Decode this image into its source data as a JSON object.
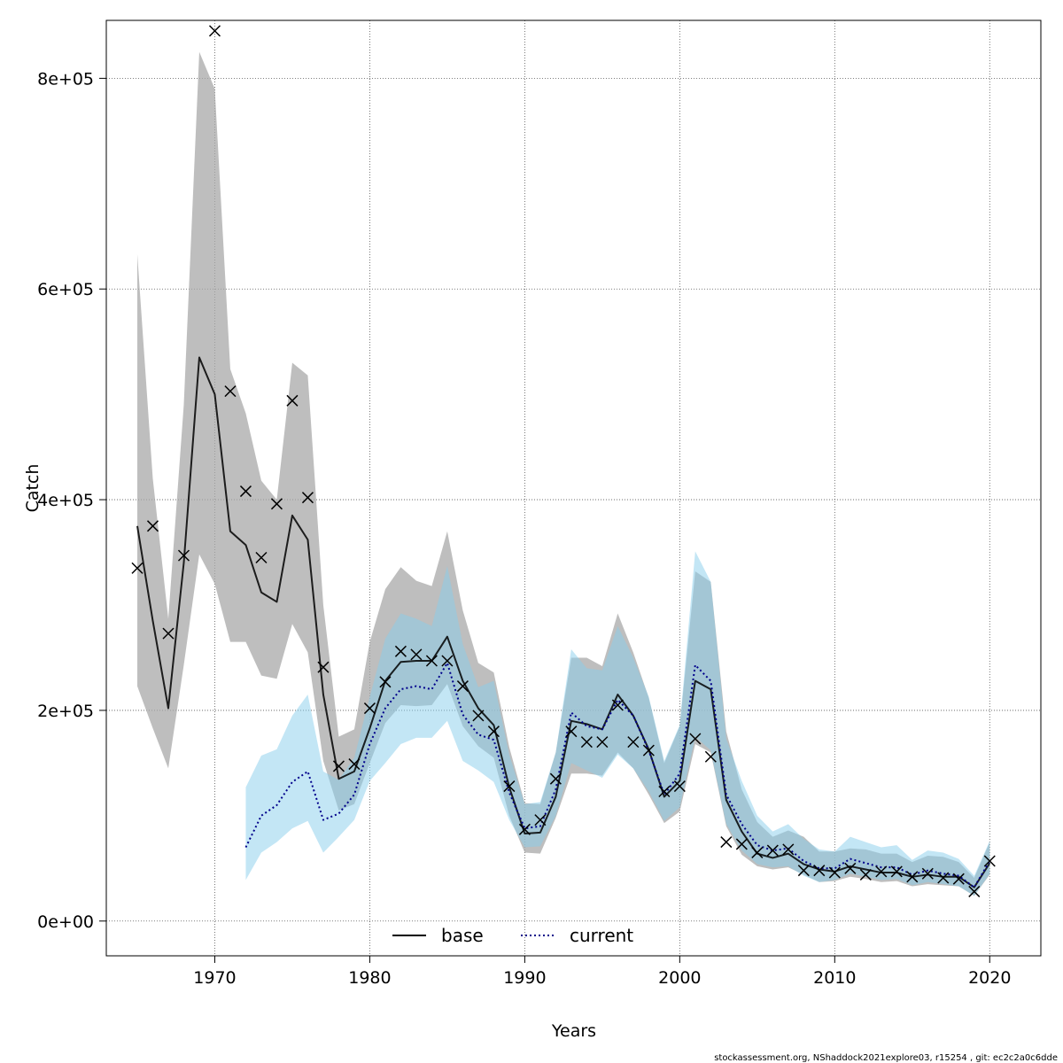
{
  "chart_data": {
    "type": "line",
    "xlabel": "Years",
    "ylabel": "Catch",
    "xlim": [
      1963,
      2023.3
    ],
    "ylim": [
      -33000,
      855000
    ],
    "x_ticks": [
      1970,
      1980,
      1990,
      2000,
      2010,
      2020
    ],
    "y_ticks": [
      0,
      200000,
      400000,
      600000,
      800000
    ],
    "y_tick_labels": [
      "0e+00",
      "2e+05",
      "4e+05",
      "6e+05",
      "8e+05"
    ],
    "grid": true,
    "legend_position": "bottom-center",
    "colors": {
      "base_band": "#a8a8a8",
      "current_band": "#87ceeb",
      "base_line": "#000000",
      "current_line": "#00008b"
    },
    "series": [
      {
        "name": "base",
        "style": "solid",
        "x": [
          1965,
          1966,
          1967,
          1968,
          1969,
          1970,
          1971,
          1972,
          1973,
          1974,
          1975,
          1976,
          1977,
          1978,
          1979,
          1980,
          1981,
          1982,
          1983,
          1984,
          1985,
          1986,
          1987,
          1988,
          1989,
          1990,
          1991,
          1992,
          1993,
          1994,
          1995,
          1996,
          1997,
          1998,
          1999,
          2000,
          2001,
          2002,
          2003,
          2004,
          2005,
          2006,
          2007,
          2008,
          2009,
          2010,
          2011,
          2012,
          2013,
          2014,
          2015,
          2016,
          2017,
          2018,
          2019,
          2020
        ],
        "estimate": [
          375000,
          285000,
          202000,
          340000,
          535000,
          500000,
          370000,
          357000,
          312000,
          303000,
          385000,
          362000,
          215000,
          135000,
          142000,
          183000,
          228000,
          246000,
          247000,
          247000,
          270000,
          228000,
          202000,
          186000,
          127000,
          83000,
          84000,
          118000,
          190000,
          187000,
          182000,
          215000,
          195000,
          163000,
          118000,
          133000,
          228000,
          220000,
          115000,
          85000,
          64000,
          60000,
          64000,
          54000,
          49000,
          47000,
          52000,
          49000,
          46000,
          46000,
          42000,
          44000,
          42000,
          42000,
          32000,
          55000
        ],
        "lower": [
          223000,
          183000,
          145000,
          243000,
          348000,
          320000,
          265000,
          265000,
          233000,
          230000,
          282000,
          255000,
          152000,
          105000,
          111000,
          150000,
          188000,
          205000,
          204000,
          205000,
          225000,
          185000,
          166000,
          155000,
          100000,
          65000,
          64000,
          98000,
          140000,
          140000,
          138000,
          160000,
          145000,
          120000,
          93000,
          104000,
          168000,
          160000,
          90000,
          63000,
          52000,
          49000,
          51000,
          44000,
          37000,
          38000,
          42000,
          40000,
          37000,
          38000,
          33000,
          35000,
          34000,
          33000,
          24000,
          44000
        ],
        "upper": [
          633000,
          420000,
          287000,
          490000,
          825000,
          790000,
          524000,
          482000,
          418000,
          400000,
          530000,
          518000,
          300000,
          175000,
          182000,
          265000,
          315000,
          336000,
          323000,
          318000,
          370000,
          295000,
          245000,
          236000,
          165000,
          112000,
          111000,
          160000,
          250000,
          250000,
          242000,
          292000,
          255000,
          212000,
          150000,
          185000,
          332000,
          322000,
          180000,
          125000,
          94000,
          80000,
          86000,
          80000,
          66000,
          66000,
          69000,
          68000,
          64000,
          64000,
          56000,
          62000,
          61000,
          56000,
          41000,
          75000
        ]
      },
      {
        "name": "current",
        "style": "dotted",
        "x": [
          1972,
          1973,
          1974,
          1975,
          1976,
          1977,
          1978,
          1979,
          1980,
          1981,
          1982,
          1983,
          1984,
          1985,
          1986,
          1987,
          1988,
          1989,
          1990,
          1991,
          1992,
          1993,
          1994,
          1995,
          1996,
          1997,
          1998,
          1999,
          2000,
          2001,
          2002,
          2003,
          2004,
          2005,
          2006,
          2007,
          2008,
          2009,
          2010,
          2011,
          2012,
          2013,
          2014,
          2015,
          2016,
          2017,
          2018,
          2019,
          2020
        ],
        "estimate": [
          70000,
          100000,
          110000,
          132000,
          142000,
          96000,
          102000,
          120000,
          168000,
          202000,
          220000,
          223000,
          220000,
          245000,
          196000,
          177000,
          172000,
          122000,
          88000,
          90000,
          125000,
          198000,
          185000,
          182000,
          210000,
          195000,
          162000,
          120000,
          140000,
          243000,
          228000,
          120000,
          92000,
          72000,
          67000,
          69000,
          57000,
          50000,
          50000,
          59000,
          55000,
          51000,
          51000,
          44000,
          48000,
          45000,
          43000,
          32000,
          57000
        ],
        "lower": [
          39000,
          65000,
          75000,
          88000,
          95000,
          65000,
          80000,
          96000,
          133000,
          150000,
          168000,
          174000,
          174000,
          190000,
          152000,
          143000,
          132000,
          96000,
          70000,
          71000,
          100000,
          150000,
          143000,
          136000,
          158000,
          145000,
          123000,
          95000,
          108000,
          175000,
          162000,
          92000,
          67000,
          54000,
          51000,
          52000,
          43000,
          37000,
          39000,
          45000,
          42000,
          39000,
          40000,
          34000,
          37000,
          35000,
          33000,
          24000,
          45000
        ],
        "upper": [
          127000,
          157000,
          163000,
          195000,
          215000,
          142000,
          134000,
          155000,
          213000,
          268000,
          292000,
          287000,
          280000,
          337000,
          263000,
          222000,
          228000,
          158000,
          111000,
          113000,
          160000,
          258000,
          240000,
          238000,
          280000,
          250000,
          213000,
          152000,
          186000,
          351000,
          322000,
          173000,
          133000,
          100000,
          85000,
          92000,
          78000,
          68000,
          66000,
          80000,
          75000,
          70000,
          72000,
          58000,
          67000,
          65000,
          59000,
          43000,
          76000
        ]
      }
    ],
    "observations": {
      "marker": "x",
      "x": [
        1965,
        1966,
        1967,
        1968,
        1970,
        1971,
        1972,
        1973,
        1974,
        1975,
        1976,
        1977,
        1978,
        1979,
        1980,
        1981,
        1982,
        1983,
        1984,
        1985,
        1986,
        1987,
        1988,
        1989,
        1990,
        1991,
        1992,
        1993,
        1994,
        1995,
        1996,
        1997,
        1998,
        1999,
        2000,
        2001,
        2002,
        2003,
        2004,
        2005,
        2006,
        2007,
        2008,
        2009,
        2010,
        2011,
        2012,
        2013,
        2014,
        2015,
        2016,
        2017,
        2018,
        2019,
        2020
      ],
      "y": [
        335000,
        375000,
        273000,
        347000,
        845000,
        503000,
        408000,
        345000,
        396000,
        494000,
        402000,
        241000,
        147000,
        149000,
        202000,
        227000,
        256000,
        253000,
        247000,
        247000,
        223000,
        195000,
        180000,
        128000,
        87000,
        96000,
        135000,
        180000,
        170000,
        170000,
        205000,
        170000,
        162000,
        123000,
        128000,
        173000,
        156000,
        75000,
        73000,
        65000,
        67000,
        68000,
        48000,
        48000,
        46000,
        50000,
        44000,
        47000,
        47000,
        42000,
        45000,
        41000,
        40000,
        28000,
        57000
      ]
    }
  },
  "legend": {
    "base_label": "base",
    "current_label": "current"
  },
  "footer": {
    "text": "stockassessment.org, NShaddock2021explore03, r15254 , git: ec2c2a0c6dde"
  }
}
